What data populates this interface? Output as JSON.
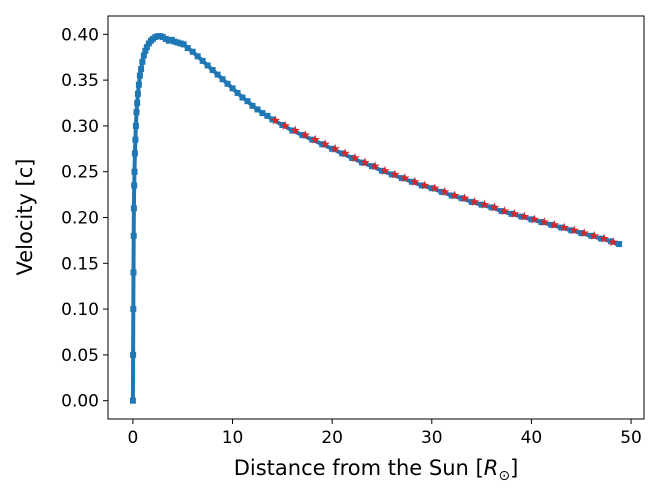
{
  "chart_data": {
    "type": "scatter",
    "xlabel": "Distance from the Sun [",
    "xlabel_symbol": "R",
    "xlabel_subscript": "⊙",
    "xlabel_suffix": "]",
    "ylabel": "Velocity [c]",
    "xlim": [
      -2.5,
      51.3
    ],
    "ylim": [
      -0.02,
      0.42
    ],
    "xticks": [
      0,
      10,
      20,
      30,
      40,
      50
    ],
    "xtick_labels": [
      "0",
      "10",
      "20",
      "30",
      "40",
      "50"
    ],
    "yticks": [
      0.0,
      0.05,
      0.1,
      0.15,
      0.2,
      0.25,
      0.3,
      0.35,
      0.4
    ],
    "ytick_labels": [
      "0.00",
      "0.05",
      "0.10",
      "0.15",
      "0.20",
      "0.25",
      "0.30",
      "0.35",
      "0.40"
    ],
    "grid": false,
    "series": [
      {
        "marker": "square",
        "color": "#1f77b4",
        "x": [
          0.0,
          0.02,
          0.04,
          0.06,
          0.08,
          0.1,
          0.13,
          0.16,
          0.2,
          0.25,
          0.3,
          0.36,
          0.43,
          0.5,
          0.6,
          0.7,
          0.82,
          0.95,
          1.1,
          1.25,
          1.4,
          1.6,
          1.8,
          2.0,
          2.25,
          2.5,
          2.75,
          3.0,
          3.3,
          3.6,
          3.9,
          4.2,
          4.5,
          4.8,
          5.1,
          5.5,
          6.0,
          6.5,
          7.0,
          7.5,
          8.0,
          8.5,
          9.0,
          9.5,
          10.0,
          10.5,
          11.0,
          11.5,
          12.0,
          12.5,
          13.0,
          13.5,
          14.0,
          15.0,
          16.0,
          17.0,
          18.0,
          19.0,
          20.0,
          21.0,
          22.0,
          23.0,
          24.0,
          25.0,
          26.0,
          27.0,
          28.0,
          29.0,
          30.0,
          31.0,
          32.0,
          33.0,
          34.0,
          35.0,
          36.0,
          37.0,
          38.0,
          39.0,
          40.0,
          41.0,
          42.0,
          43.0,
          44.0,
          45.0,
          46.0,
          47.0,
          48.0,
          48.8
        ],
        "y": [
          0.0,
          0.05,
          0.1,
          0.14,
          0.18,
          0.21,
          0.235,
          0.25,
          0.27,
          0.285,
          0.3,
          0.315,
          0.325,
          0.335,
          0.345,
          0.355,
          0.362,
          0.37,
          0.377,
          0.382,
          0.386,
          0.39,
          0.393,
          0.395,
          0.397,
          0.398,
          0.398,
          0.397,
          0.395,
          0.393,
          0.394,
          0.392,
          0.391,
          0.39,
          0.389,
          0.385,
          0.381,
          0.376,
          0.371,
          0.366,
          0.361,
          0.356,
          0.351,
          0.346,
          0.341,
          0.336,
          0.331,
          0.327,
          0.322,
          0.318,
          0.314,
          0.311,
          0.307,
          0.301,
          0.295,
          0.29,
          0.285,
          0.28,
          0.275,
          0.27,
          0.265,
          0.26,
          0.256,
          0.251,
          0.247,
          0.243,
          0.239,
          0.235,
          0.232,
          0.228,
          0.224,
          0.221,
          0.217,
          0.214,
          0.211,
          0.207,
          0.204,
          0.201,
          0.198,
          0.195,
          0.192,
          0.189,
          0.186,
          0.183,
          0.18,
          0.177,
          0.174,
          0.171
        ]
      },
      {
        "marker": "star",
        "color": "#d62728",
        "x": [
          14.3,
          15.3,
          16.3,
          17.3,
          18.3,
          19.3,
          20.3,
          21.3,
          22.3,
          23.3,
          24.3,
          25.3,
          26.3,
          27.3,
          28.3,
          29.3,
          30.3,
          31.3,
          32.3,
          33.3,
          34.3,
          35.3,
          36.3,
          37.3,
          38.3,
          39.3,
          40.3,
          41.3,
          42.3,
          43.3,
          44.3,
          45.3,
          46.3,
          47.3,
          48.2
        ],
        "y": [
          0.306,
          0.3,
          0.295,
          0.29,
          0.285,
          0.28,
          0.275,
          0.27,
          0.265,
          0.26,
          0.256,
          0.251,
          0.247,
          0.243,
          0.239,
          0.235,
          0.232,
          0.228,
          0.224,
          0.221,
          0.217,
          0.214,
          0.211,
          0.207,
          0.204,
          0.201,
          0.198,
          0.195,
          0.192,
          0.189,
          0.186,
          0.183,
          0.18,
          0.177,
          0.173
        ]
      }
    ]
  }
}
